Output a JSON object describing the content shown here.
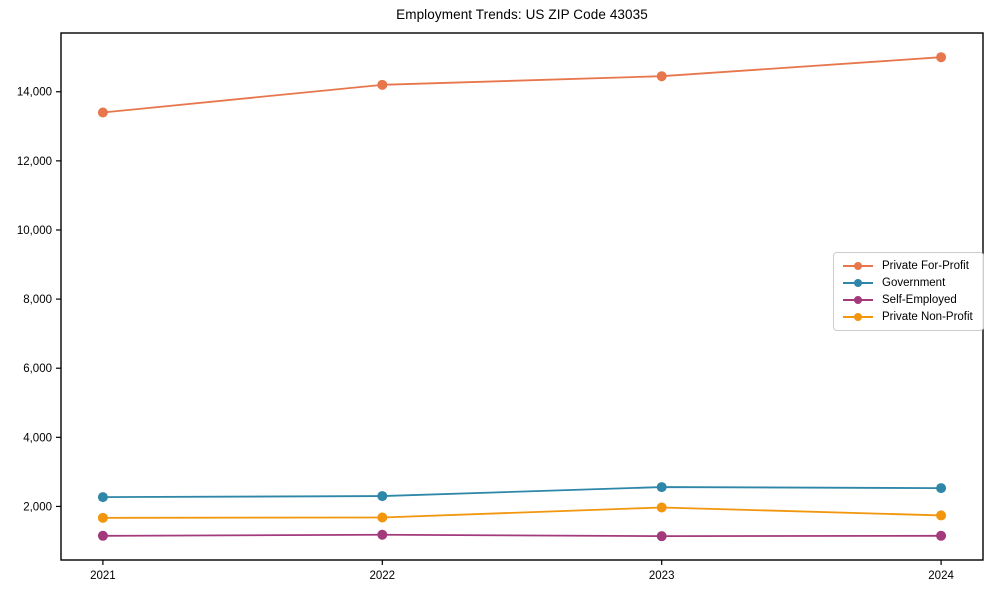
{
  "chart_data": {
    "type": "line",
    "title": "Employment Trends: US ZIP Code 43035",
    "xlabel": "",
    "ylabel": "",
    "x": [
      2021,
      2022,
      2023,
      2024
    ],
    "x_tick_labels": [
      "2021",
      "2022",
      "2023",
      "2024"
    ],
    "y_ticks": [
      2000,
      4000,
      6000,
      8000,
      10000,
      12000,
      14000
    ],
    "y_tick_labels": [
      "2,000",
      "4,000",
      "6,000",
      "8,000",
      "10,000",
      "12,000",
      "14,000"
    ],
    "xlim": [
      2020.85,
      2024.15
    ],
    "ylim": [
      450,
      15700
    ],
    "grid": false,
    "legend_position": "center-right",
    "series": [
      {
        "name": "Private For-Profit",
        "color": "#E8764C",
        "values": [
          13400,
          14200,
          14450,
          15000
        ]
      },
      {
        "name": "Government",
        "color": "#2E86A8",
        "values": [
          2270,
          2300,
          2560,
          2530
        ]
      },
      {
        "name": "Self-Employed",
        "color": "#A23A7C",
        "values": [
          1150,
          1180,
          1140,
          1150
        ]
      },
      {
        "name": "Private Non-Profit",
        "color": "#F2960D",
        "values": [
          1670,
          1680,
          1970,
          1740
        ]
      }
    ],
    "marker": "circle",
    "marker_radius": 5,
    "line_width": 1.8,
    "axis_color": "#000000"
  }
}
